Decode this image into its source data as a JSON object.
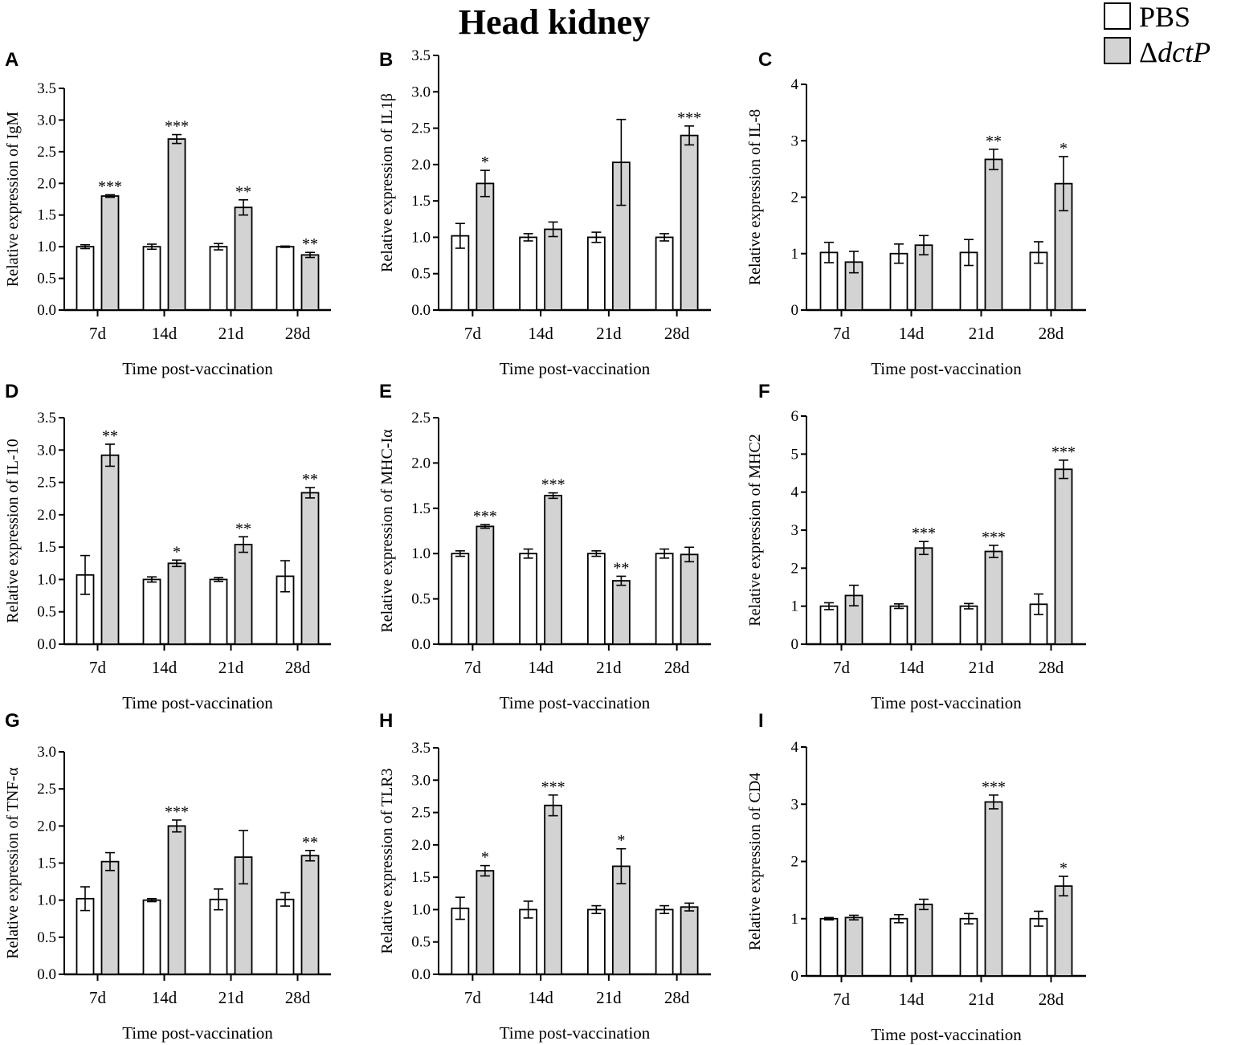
{
  "figure": {
    "title": "Head kidney",
    "legend": {
      "entries": [
        {
          "name": "PBS",
          "color": "#ffffff"
        },
        {
          "name": "ΔdctP",
          "prefix": "Δ",
          "italic": "dctP",
          "color": "#d3d3d3"
        }
      ]
    }
  },
  "chart_data": [
    {
      "type": "bar",
      "panel": "A",
      "categories": [
        "7d",
        "14d",
        "21d",
        "28d"
      ],
      "xlabel": "Time post-vaccination",
      "ylabel": "Relative expression of IgM",
      "ylim": [
        0,
        3.5
      ],
      "yticks": [
        "0.0",
        "0.5",
        "1.0",
        "1.5",
        "2.0",
        "2.5",
        "3.0",
        "3.5"
      ],
      "series": [
        {
          "name": "PBS",
          "values": [
            1.0,
            1.0,
            1.0,
            1.0
          ],
          "errors": [
            0.03,
            0.04,
            0.05,
            0.01
          ]
        },
        {
          "name": "ΔdctP",
          "values": [
            1.8,
            2.7,
            1.62,
            0.87
          ],
          "errors": [
            0.02,
            0.07,
            0.12,
            0.04
          ]
        }
      ],
      "significance": [
        "***",
        "***",
        "**",
        "**"
      ]
    },
    {
      "type": "bar",
      "panel": "B",
      "categories": [
        "7d",
        "14d",
        "21d",
        "28d"
      ],
      "xlabel": "Time post-vaccination",
      "ylabel": "Relative expression of IL1β",
      "ylim": [
        0,
        3.5
      ],
      "yticks": [
        "0.0",
        "0.5",
        "1.0",
        "1.5",
        "2.0",
        "2.5",
        "3.0",
        "3.5"
      ],
      "series": [
        {
          "name": "PBS",
          "values": [
            1.02,
            1.0,
            1.0,
            1.0
          ],
          "errors": [
            0.17,
            0.05,
            0.07,
            0.05
          ]
        },
        {
          "name": "ΔdctP",
          "values": [
            1.74,
            1.11,
            2.03,
            2.4
          ],
          "errors": [
            0.18,
            0.1,
            0.59,
            0.13
          ]
        }
      ],
      "significance": [
        "*",
        "",
        "",
        "***"
      ]
    },
    {
      "type": "bar",
      "panel": "C",
      "categories": [
        "7d",
        "14d",
        "21d",
        "28d"
      ],
      "xlabel": "Time post-vaccination",
      "ylabel": "Relative expression of IL-8",
      "ylim": [
        0,
        4
      ],
      "yticks": [
        "0",
        "1",
        "2",
        "3",
        "4"
      ],
      "series": [
        {
          "name": "PBS",
          "values": [
            1.02,
            1.0,
            1.02,
            1.02
          ],
          "errors": [
            0.18,
            0.17,
            0.23,
            0.19
          ]
        },
        {
          "name": "ΔdctP",
          "values": [
            0.85,
            1.15,
            2.67,
            2.24
          ],
          "errors": [
            0.19,
            0.17,
            0.18,
            0.48
          ]
        }
      ],
      "significance": [
        "",
        "",
        "**",
        "*"
      ]
    },
    {
      "type": "bar",
      "panel": "D",
      "categories": [
        "7d",
        "14d",
        "21d",
        "28d"
      ],
      "xlabel": "Time post-vaccination",
      "ylabel": "Relative expression of IL-10",
      "ylim": [
        0,
        3.5
      ],
      "yticks": [
        "0.0",
        "0.5",
        "1.0",
        "1.5",
        "2.0",
        "2.5",
        "3.0",
        "3.5"
      ],
      "series": [
        {
          "name": "PBS",
          "values": [
            1.07,
            1.0,
            1.0,
            1.05
          ],
          "errors": [
            0.3,
            0.04,
            0.03,
            0.24
          ]
        },
        {
          "name": "ΔdctP",
          "values": [
            2.92,
            1.25,
            1.54,
            2.34
          ],
          "errors": [
            0.17,
            0.05,
            0.12,
            0.08
          ]
        }
      ],
      "significance": [
        "**",
        "*",
        "**",
        "**"
      ]
    },
    {
      "type": "bar",
      "panel": "E",
      "categories": [
        "7d",
        "14d",
        "21d",
        "28d"
      ],
      "xlabel": "Time post-vaccination",
      "ylabel": "Relative expression of MHC-Iα",
      "ylim": [
        0,
        2.5
      ],
      "yticks": [
        "0.0",
        "0.5",
        "1.0",
        "1.5",
        "2.0",
        "2.5"
      ],
      "series": [
        {
          "name": "PBS",
          "values": [
            1.0,
            1.0,
            1.0,
            1.0
          ],
          "errors": [
            0.03,
            0.05,
            0.03,
            0.05
          ]
        },
        {
          "name": "ΔdctP",
          "values": [
            1.3,
            1.64,
            0.7,
            0.99
          ],
          "errors": [
            0.02,
            0.03,
            0.05,
            0.08
          ]
        }
      ],
      "significance": [
        "***",
        "***",
        "**",
        ""
      ]
    },
    {
      "type": "bar",
      "panel": "F",
      "categories": [
        "7d",
        "14d",
        "21d",
        "28d"
      ],
      "xlabel": "Time post-vaccination",
      "ylabel": "Relative expression of MHC2",
      "ylim": [
        0,
        6
      ],
      "yticks": [
        "0",
        "1",
        "2",
        "3",
        "4",
        "5",
        "6"
      ],
      "series": [
        {
          "name": "PBS",
          "values": [
            1.0,
            1.0,
            1.0,
            1.05
          ],
          "errors": [
            0.09,
            0.06,
            0.07,
            0.27
          ]
        },
        {
          "name": "ΔdctP",
          "values": [
            1.28,
            2.53,
            2.44,
            4.6
          ],
          "errors": [
            0.27,
            0.17,
            0.16,
            0.24
          ]
        }
      ],
      "significance": [
        "",
        "***",
        "***",
        "***"
      ]
    },
    {
      "type": "bar",
      "panel": "G",
      "categories": [
        "7d",
        "14d",
        "21d",
        "28d"
      ],
      "xlabel": "Time post-vaccination",
      "ylabel": "Relative expression of TNF-α",
      "ylim": [
        0,
        3.0
      ],
      "yticks": [
        "0.0",
        "0.5",
        "1.0",
        "1.5",
        "2.0",
        "2.5",
        "3.0"
      ],
      "series": [
        {
          "name": "PBS",
          "values": [
            1.02,
            1.0,
            1.01,
            1.01
          ],
          "errors": [
            0.16,
            0.02,
            0.14,
            0.09
          ]
        },
        {
          "name": "ΔdctP",
          "values": [
            1.52,
            2.0,
            1.58,
            1.6
          ],
          "errors": [
            0.12,
            0.08,
            0.36,
            0.07
          ]
        }
      ],
      "significance": [
        "",
        "***",
        "",
        "**"
      ]
    },
    {
      "type": "bar",
      "panel": "H",
      "categories": [
        "7d",
        "14d",
        "21d",
        "28d"
      ],
      "xlabel": "Time post-vaccination",
      "ylabel": "Relative expression of TLR3",
      "ylim": [
        0,
        3.5
      ],
      "yticks": [
        "0.0",
        "0.5",
        "1.0",
        "1.5",
        "2.0",
        "2.5",
        "3.0",
        "3.5"
      ],
      "series": [
        {
          "name": "PBS",
          "values": [
            1.02,
            1.0,
            1.0,
            1.0
          ],
          "errors": [
            0.17,
            0.13,
            0.06,
            0.06
          ]
        },
        {
          "name": "ΔdctP",
          "values": [
            1.6,
            2.61,
            1.67,
            1.04
          ],
          "errors": [
            0.08,
            0.16,
            0.27,
            0.06
          ]
        }
      ],
      "significance": [
        "*",
        "***",
        "*",
        ""
      ]
    },
    {
      "type": "bar",
      "panel": "I",
      "categories": [
        "7d",
        "14d",
        "21d",
        "28d"
      ],
      "xlabel": "Time post-vaccination",
      "ylabel": "Relative expression of CD4",
      "ylim": [
        0,
        4
      ],
      "yticks": [
        "0",
        "1",
        "2",
        "3",
        "4"
      ],
      "series": [
        {
          "name": "PBS",
          "values": [
            1.0,
            1.0,
            1.0,
            1.0
          ],
          "errors": [
            0.02,
            0.07,
            0.09,
            0.13
          ]
        },
        {
          "name": "ΔdctP",
          "values": [
            1.02,
            1.25,
            3.04,
            1.57
          ],
          "errors": [
            0.04,
            0.09,
            0.12,
            0.17
          ]
        }
      ],
      "significance": [
        "",
        "",
        "***",
        "*"
      ]
    }
  ]
}
